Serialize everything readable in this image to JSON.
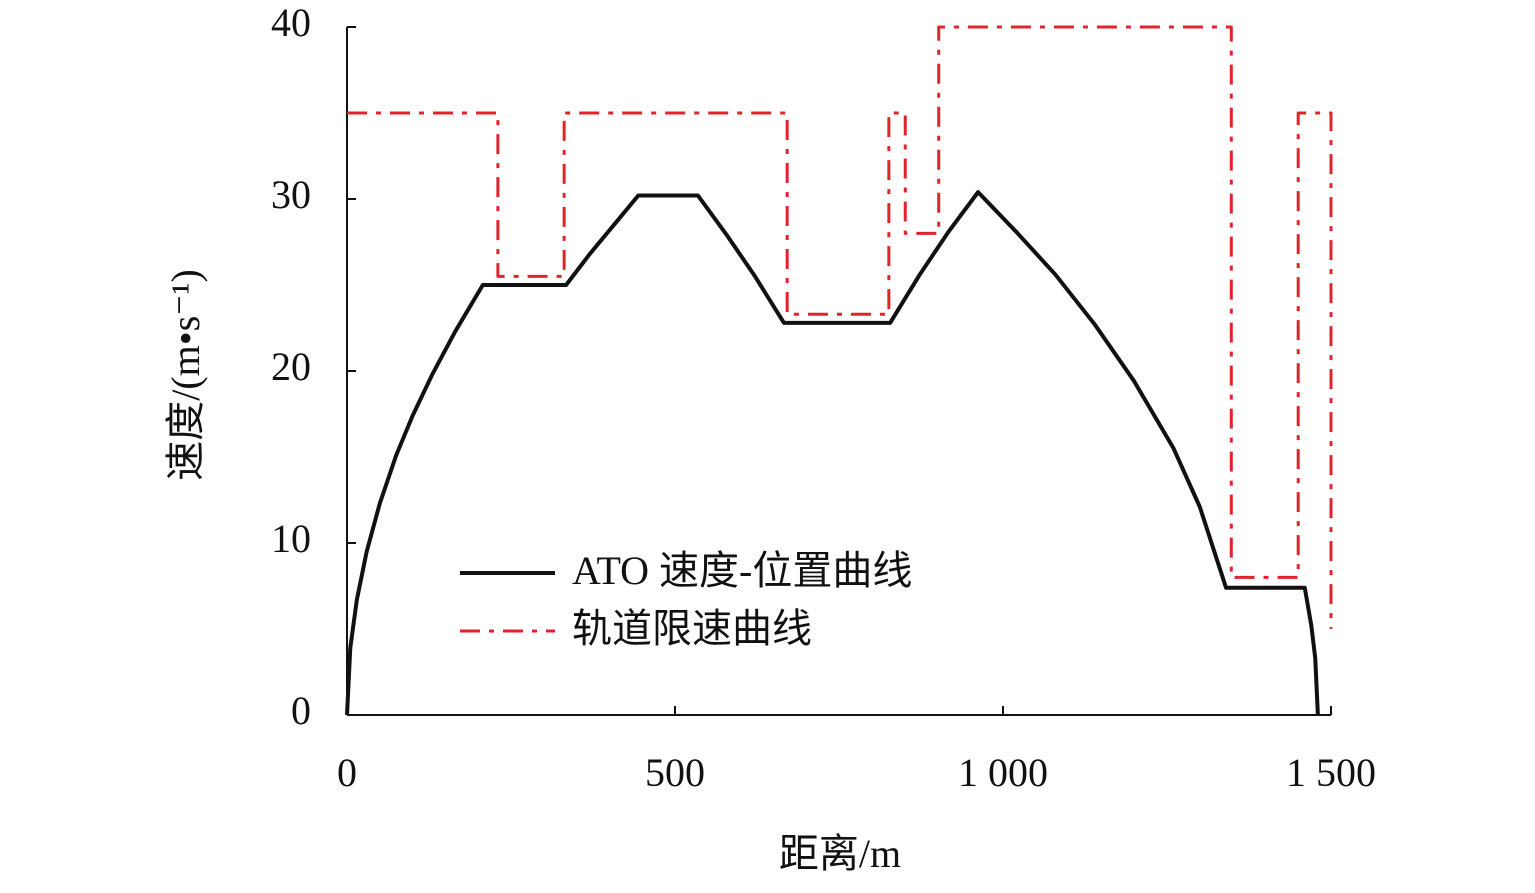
{
  "chart_data": {
    "type": "line",
    "xlabel": "距离/m",
    "ylabel": "速度/(m•s⁻¹)",
    "xlim": [
      0,
      1500
    ],
    "ylim": [
      0,
      40
    ],
    "xticks": [
      0,
      500,
      {
        "value": 1000,
        "label": "1 000"
      },
      {
        "value": 1500,
        "label": "1 500"
      }
    ],
    "yticks": [
      0,
      10,
      20,
      30,
      40
    ],
    "grid": false,
    "legend": "lower left",
    "series": [
      {
        "name": "ATO 速度-位置曲线",
        "color": "#111111",
        "style": "solid",
        "x": [
          0,
          5,
          15,
          30,
          50,
          75,
          100,
          130,
          165,
          207,
          334,
          370,
          407,
          444,
          535,
          579,
          622,
          666,
          828,
          873,
          917,
          962,
          1020,
          1080,
          1140,
          1200,
          1260,
          1300,
          1340,
          1460,
          1470,
          1476,
          1480
        ],
        "values": [
          0,
          3.9,
          6.7,
          9.5,
          12.3,
          15.1,
          17.4,
          19.8,
          22.3,
          25,
          25,
          26.8,
          28.5,
          30.2,
          30.2,
          27.9,
          25.5,
          22.8,
          22.8,
          25.6,
          28.1,
          30.4,
          28.1,
          25.6,
          22.7,
          19.4,
          15.5,
          12.1,
          7.4,
          7.4,
          5.2,
          3.3,
          0
        ]
      },
      {
        "name": "轨道限速曲线",
        "color": "#e0242c",
        "style": "dashdot",
        "x": [
          0,
          230,
          230,
          331,
          331,
          671,
          671,
          826,
          826,
          851,
          851,
          902,
          902,
          1348,
          1348,
          1450,
          1450,
          1500,
          1500
        ],
        "values": [
          35,
          35,
          25.5,
          25.5,
          35,
          35,
          23.3,
          23.3,
          35,
          35,
          28,
          28,
          40,
          40,
          8,
          8,
          35,
          35,
          5
        ]
      }
    ]
  }
}
